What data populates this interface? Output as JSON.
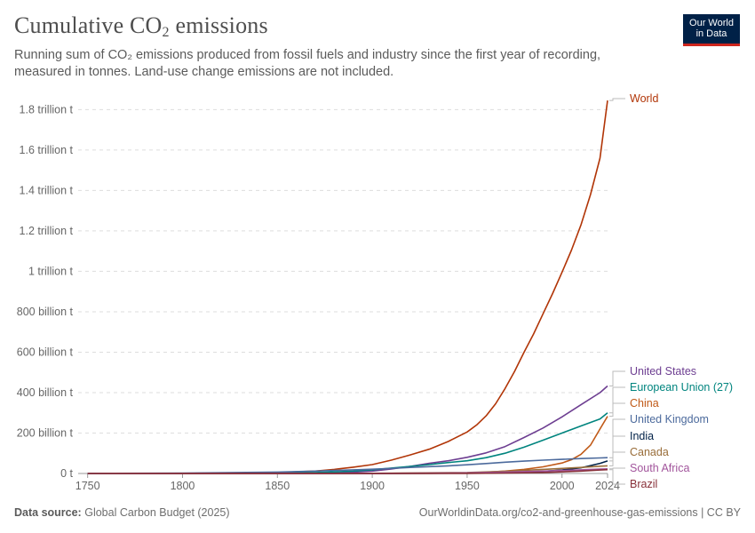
{
  "header": {
    "title_main": "Cumulative CO",
    "title_sub": "2",
    "title_end": " emissions",
    "subtitle": "Running sum of CO₂ emissions produced from fossil fuels and industry since the first year of recording, measured in tonnes. Land-use change emissions are not included."
  },
  "logo": {
    "line1": "Our World",
    "line2": "in Data",
    "bg": "#002147",
    "accent": "#ce261e"
  },
  "footer": {
    "source_label": "Data source:",
    "source_value": "Global Carbon Budget (2025)",
    "link": "OurWorldinData.org/co2-and-greenhouse-gas-emissions | CC BY"
  },
  "chart_data": {
    "type": "line",
    "ylim": [
      0,
      1850000000000
    ],
    "xlim": [
      1745,
      2024
    ],
    "yticks": [
      {
        "value": 0,
        "label": "0 t"
      },
      {
        "value": 200000000000,
        "label": "200 billion t"
      },
      {
        "value": 400000000000,
        "label": "400 billion t"
      },
      {
        "value": 600000000000,
        "label": "600 billion t"
      },
      {
        "value": 800000000000,
        "label": "800 billion t"
      },
      {
        "value": 1000000000000,
        "label": "1 trillion t"
      },
      {
        "value": 1200000000000,
        "label": "1.2 trillion t"
      },
      {
        "value": 1400000000000,
        "label": "1.4 trillion t"
      },
      {
        "value": 1600000000000,
        "label": "1.6 trillion t"
      },
      {
        "value": 1800000000000,
        "label": "1.8 trillion t"
      }
    ],
    "xticks": [
      {
        "value": 1750,
        "label": "1750"
      },
      {
        "value": 1800,
        "label": "1800"
      },
      {
        "value": 1850,
        "label": "1850"
      },
      {
        "value": 1900,
        "label": "1900"
      },
      {
        "value": 1950,
        "label": "1950"
      },
      {
        "value": 2000,
        "label": "2000"
      },
      {
        "value": 2024,
        "label": "2024"
      }
    ],
    "grid": true,
    "legend": "right",
    "series": [
      {
        "name": "World",
        "color": "#b13507",
        "points": [
          [
            1750,
            0.01
          ],
          [
            1800,
            0.6
          ],
          [
            1850,
            5
          ],
          [
            1870,
            12
          ],
          [
            1880,
            20
          ],
          [
            1890,
            31
          ],
          [
            1900,
            44
          ],
          [
            1910,
            66
          ],
          [
            1920,
            92
          ],
          [
            1930,
            120
          ],
          [
            1940,
            158
          ],
          [
            1950,
            205
          ],
          [
            1955,
            240
          ],
          [
            1960,
            285
          ],
          [
            1965,
            345
          ],
          [
            1970,
            420
          ],
          [
            1975,
            505
          ],
          [
            1980,
            600
          ],
          [
            1985,
            690
          ],
          [
            1990,
            790
          ],
          [
            1995,
            890
          ],
          [
            2000,
            995
          ],
          [
            2005,
            1105
          ],
          [
            2010,
            1230
          ],
          [
            2015,
            1380
          ],
          [
            2020,
            1560
          ],
          [
            2024,
            1845
          ]
        ]
      },
      {
        "name": "United States",
        "color": "#6d3e91",
        "points": [
          [
            1750,
            0
          ],
          [
            1800,
            0.05
          ],
          [
            1850,
            0.6
          ],
          [
            1870,
            2
          ],
          [
            1880,
            4
          ],
          [
            1890,
            7
          ],
          [
            1900,
            12
          ],
          [
            1910,
            22
          ],
          [
            1920,
            35
          ],
          [
            1930,
            50
          ],
          [
            1940,
            63
          ],
          [
            1950,
            80
          ],
          [
            1960,
            102
          ],
          [
            1970,
            133
          ],
          [
            1980,
            178
          ],
          [
            1990,
            225
          ],
          [
            2000,
            280
          ],
          [
            2010,
            340
          ],
          [
            2020,
            400
          ],
          [
            2024,
            433
          ]
        ]
      },
      {
        "name": "European Union (27)",
        "color": "#00847e",
        "points": [
          [
            1750,
            0
          ],
          [
            1800,
            0.3
          ],
          [
            1850,
            2
          ],
          [
            1870,
            5
          ],
          [
            1880,
            8
          ],
          [
            1890,
            12
          ],
          [
            1900,
            18
          ],
          [
            1910,
            27
          ],
          [
            1920,
            35
          ],
          [
            1930,
            44
          ],
          [
            1940,
            54
          ],
          [
            1950,
            63
          ],
          [
            1960,
            78
          ],
          [
            1970,
            100
          ],
          [
            1980,
            130
          ],
          [
            1990,
            165
          ],
          [
            2000,
            200
          ],
          [
            2010,
            235
          ],
          [
            2020,
            270
          ],
          [
            2024,
            300
          ]
        ]
      },
      {
        "name": "China",
        "color": "#c05917",
        "points": [
          [
            1750,
            0
          ],
          [
            1900,
            0.2
          ],
          [
            1930,
            0.8
          ],
          [
            1950,
            2
          ],
          [
            1960,
            6
          ],
          [
            1970,
            12
          ],
          [
            1980,
            20
          ],
          [
            1990,
            33
          ],
          [
            2000,
            52
          ],
          [
            2005,
            68
          ],
          [
            2010,
            95
          ],
          [
            2015,
            140
          ],
          [
            2020,
            220
          ],
          [
            2024,
            283
          ]
        ]
      },
      {
        "name": "United Kingdom",
        "color": "#4c6a9c",
        "points": [
          [
            1750,
            0.4
          ],
          [
            1800,
            1.8
          ],
          [
            1850,
            7
          ],
          [
            1870,
            12
          ],
          [
            1880,
            15
          ],
          [
            1890,
            18
          ],
          [
            1900,
            21
          ],
          [
            1910,
            25
          ],
          [
            1920,
            30
          ],
          [
            1930,
            34
          ],
          [
            1940,
            38
          ],
          [
            1950,
            43
          ],
          [
            1960,
            49
          ],
          [
            1970,
            56
          ],
          [
            1980,
            61
          ],
          [
            1990,
            66
          ],
          [
            2000,
            70
          ],
          [
            2010,
            74
          ],
          [
            2020,
            77
          ],
          [
            2024,
            78
          ]
        ]
      },
      {
        "name": "India",
        "color": "#002147",
        "points": [
          [
            1750,
            0
          ],
          [
            1900,
            0.2
          ],
          [
            1950,
            1.5
          ],
          [
            1970,
            4
          ],
          [
            1990,
            10
          ],
          [
            2000,
            17
          ],
          [
            2010,
            28
          ],
          [
            2020,
            50
          ],
          [
            2024,
            62
          ]
        ]
      },
      {
        "name": "Canada",
        "color": "#996d39",
        "points": [
          [
            1750,
            0
          ],
          [
            1900,
            0.8
          ],
          [
            1950,
            5
          ],
          [
            1970,
            11
          ],
          [
            1990,
            20
          ],
          [
            2000,
            25
          ],
          [
            2010,
            30
          ],
          [
            2020,
            36
          ],
          [
            2024,
            38
          ]
        ]
      },
      {
        "name": "South Africa",
        "color": "#a2559c",
        "points": [
          [
            1750,
            0
          ],
          [
            1900,
            0.4
          ],
          [
            1950,
            3
          ],
          [
            1970,
            7
          ],
          [
            1990,
            12
          ],
          [
            2000,
            15
          ],
          [
            2010,
            18
          ],
          [
            2020,
            22
          ],
          [
            2024,
            23
          ]
        ]
      },
      {
        "name": "Brazil",
        "color": "#883039",
        "points": [
          [
            1750,
            0
          ],
          [
            1950,
            0.6
          ],
          [
            1970,
            2
          ],
          [
            1990,
            5
          ],
          [
            2000,
            8
          ],
          [
            2010,
            12
          ],
          [
            2020,
            17
          ],
          [
            2024,
            19
          ]
        ]
      }
    ],
    "units_note": "point y values are in billion tonnes"
  }
}
